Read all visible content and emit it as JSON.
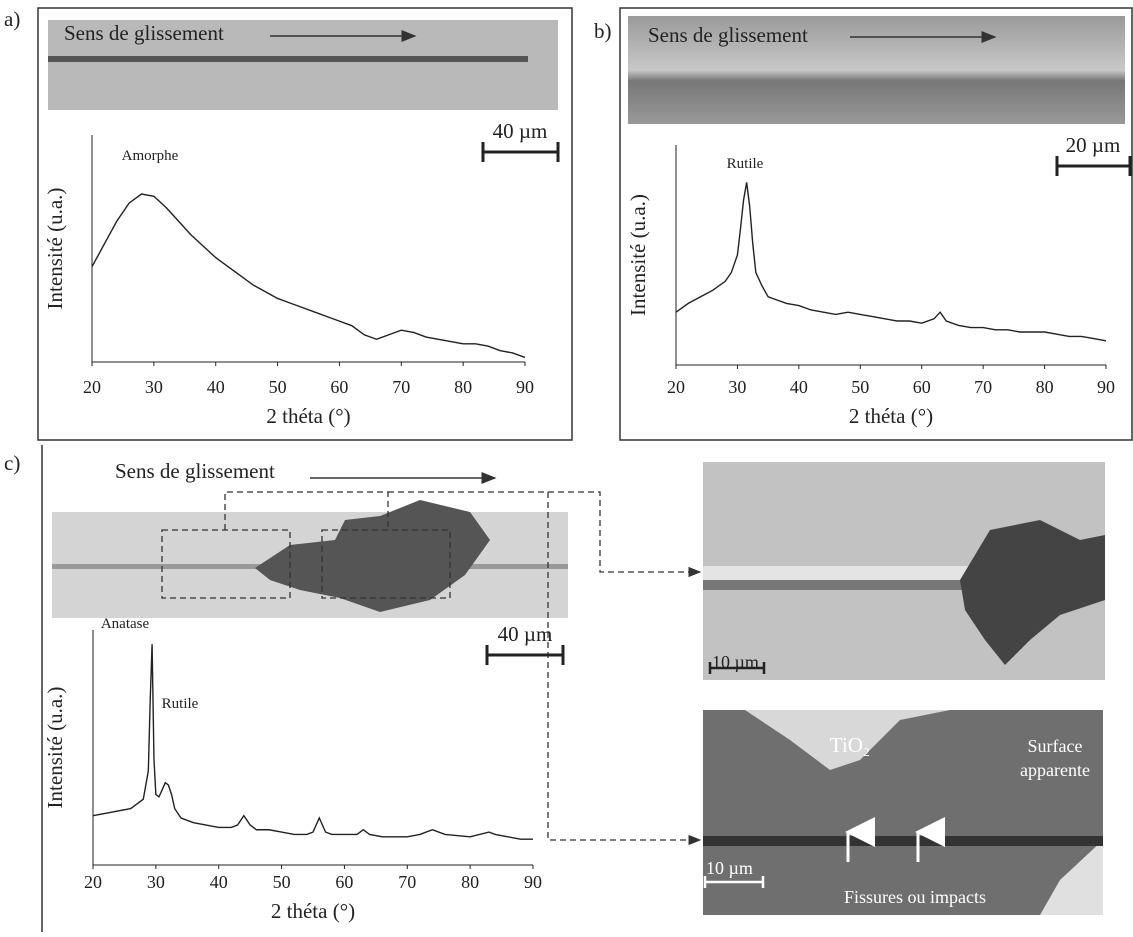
{
  "panels": {
    "a": {
      "label": "a)",
      "caption": "Sens de glissement",
      "scale": "40 µm"
    },
    "b": {
      "label": "b)",
      "caption": "Sens de glissement",
      "scale": "20 µm"
    },
    "c": {
      "label": "c)",
      "caption": "Sens de glissement",
      "scale": "40 µm",
      "zoom_top_scale": "10 µm",
      "zoom_bottom_scale": "10 µm",
      "oxide": "TiO₂",
      "surface": [
        "Surface",
        "apparente"
      ],
      "cracks": "Fissures ou impacts"
    }
  },
  "chart_data": [
    {
      "type": "line",
      "x_label": "2 théta (°)",
      "y_label": "Intensité (u.a.)",
      "annotations": [
        "Amorphe"
      ],
      "color": "#222222",
      "xlim": [
        20,
        90
      ],
      "xticks": [
        20,
        30,
        40,
        50,
        60,
        70,
        80,
        90
      ],
      "ylim": [
        0,
        100
      ],
      "x": [
        20,
        22,
        24,
        26,
        28,
        30,
        32,
        34,
        36,
        38,
        40,
        42,
        44,
        46,
        48,
        50,
        52,
        54,
        56,
        58,
        60,
        62,
        64,
        66,
        68,
        70,
        72,
        74,
        76,
        78,
        80,
        82,
        84,
        86,
        88,
        90
      ],
      "values": [
        42,
        52,
        62,
        70,
        74,
        73,
        68,
        62,
        56,
        51,
        46,
        42,
        38,
        34,
        31,
        28,
        26,
        24,
        22,
        20,
        18,
        16,
        12,
        10,
        12,
        14,
        13,
        11,
        10,
        9,
        8,
        8,
        7,
        5,
        4,
        2
      ]
    },
    {
      "type": "line",
      "x_label": "2 théta (°)",
      "y_label": "Intensité (u.a.)",
      "annotations": [
        "Rutile"
      ],
      "color": "#222222",
      "xlim": [
        20,
        90
      ],
      "xticks": [
        20,
        30,
        40,
        50,
        60,
        70,
        80,
        90
      ],
      "ylim": [
        0,
        100
      ],
      "x": [
        20,
        22,
        24,
        26,
        28,
        29,
        30,
        30.5,
        31,
        31.5,
        32,
        32.5,
        33,
        34,
        35,
        36,
        38,
        40,
        42,
        44,
        46,
        48,
        50,
        52,
        54,
        56,
        58,
        60,
        62,
        63,
        64,
        66,
        68,
        70,
        72,
        74,
        76,
        78,
        80,
        82,
        84,
        86,
        88,
        90
      ],
      "values": [
        24,
        28,
        31,
        34,
        38,
        42,
        50,
        62,
        75,
        83,
        72,
        55,
        42,
        36,
        31,
        30,
        28,
        27,
        25,
        24,
        23,
        24,
        23,
        22,
        21,
        20,
        20,
        19,
        21,
        24,
        20,
        18,
        17,
        17,
        16,
        16,
        15,
        15,
        15,
        14,
        13,
        13,
        12,
        11
      ]
    },
    {
      "type": "line",
      "x_label": "2 théta (°)",
      "y_label": "Intensité (u.a.)",
      "annotations": [
        "Anatase",
        "Rutile"
      ],
      "color": "#222222",
      "xlim": [
        20,
        90
      ],
      "xticks": [
        20,
        30,
        40,
        50,
        60,
        70,
        80,
        90
      ],
      "ylim": [
        0,
        100
      ],
      "x": [
        20,
        22,
        24,
        26,
        27,
        28,
        28.8,
        29.1,
        29.4,
        29.7,
        30,
        30.5,
        31,
        31.5,
        32,
        32.5,
        33,
        34,
        36,
        38,
        40,
        42,
        43,
        44,
        45,
        46,
        48,
        50,
        52,
        54,
        55,
        56,
        57,
        58,
        60,
        62,
        63,
        64,
        66,
        70,
        72,
        74,
        76,
        80,
        83,
        84,
        86,
        88,
        90
      ],
      "values": [
        21,
        22,
        23,
        24,
        26,
        28,
        40,
        70,
        94,
        45,
        30,
        29,
        32,
        35,
        34,
        30,
        24,
        20,
        18,
        17,
        16,
        16,
        17,
        21,
        17,
        15,
        15,
        14,
        13,
        13,
        14,
        20,
        14,
        13,
        13,
        13,
        15,
        13,
        12,
        12,
        13,
        15,
        13,
        12,
        14,
        13,
        12,
        11,
        11
      ]
    }
  ]
}
